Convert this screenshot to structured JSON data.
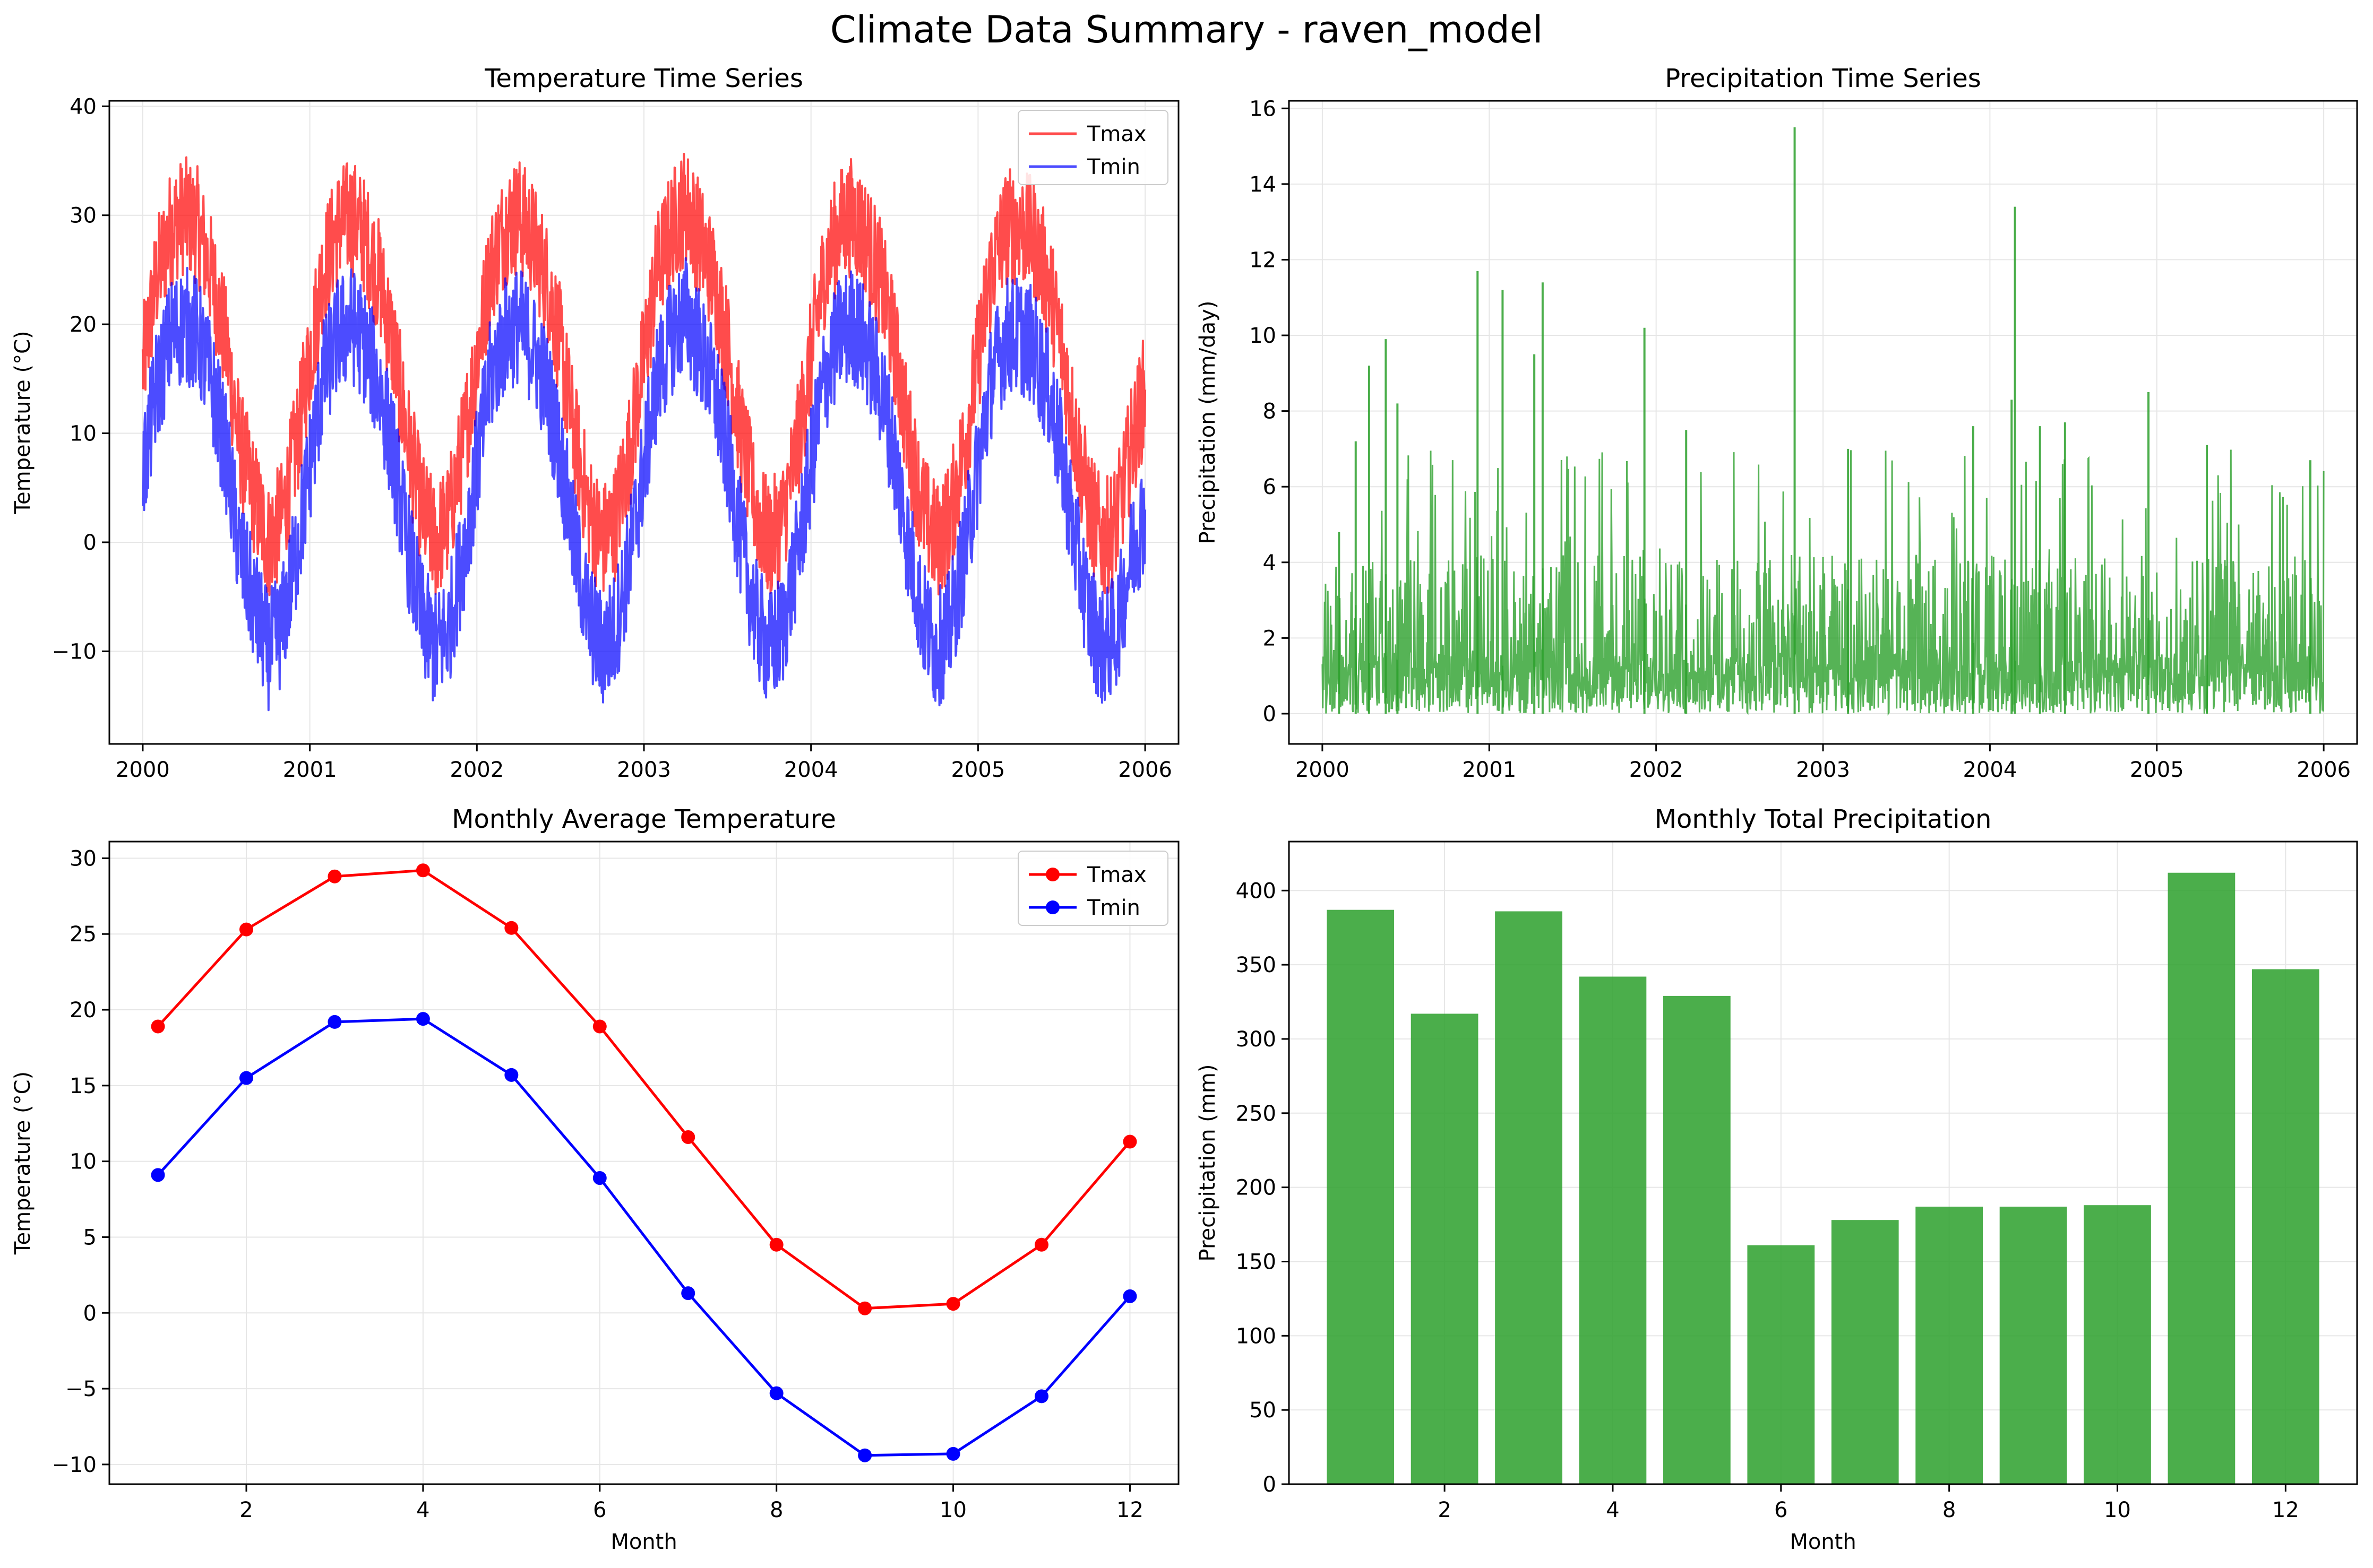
{
  "figure": {
    "suptitle": "Climate Data Summary - raven_model"
  },
  "colors": {
    "tmax_ts": "#ff0000",
    "tmin_ts": "#0000ff",
    "precip": "#2ca02c",
    "grid": "#e6e6e6"
  },
  "chart_data": [
    {
      "id": "temp_ts",
      "type": "line",
      "title": "Temperature Time Series",
      "xlabel": "",
      "ylabel": "Temperature (°C)",
      "xlim": [
        1999.8,
        2006.2
      ],
      "ylim": [
        -18.5,
        40.5
      ],
      "xticks": [
        2000,
        2001,
        2002,
        2003,
        2004,
        2005,
        2006
      ],
      "yticks": [
        -10,
        0,
        10,
        20,
        30,
        40
      ],
      "grid": true,
      "legend_position": "top-right",
      "series_note": "daily values, shown as noisy seasonal cycle",
      "series": [
        {
          "name": "Tmax",
          "color": "#ff0000",
          "alpha": 0.7,
          "x": [
            2000.0,
            2000.08,
            2000.17,
            2000.25,
            2000.33,
            2000.42,
            2000.5,
            2000.58,
            2000.67,
            2000.75,
            2000.83,
            2000.92,
            2001.0,
            2001.08,
            2001.17,
            2001.25,
            2001.33,
            2001.42,
            2001.5,
            2001.58,
            2001.67,
            2001.75,
            2001.83,
            2001.92,
            2002.0,
            2002.08,
            2002.17,
            2002.25,
            2002.33,
            2002.42,
            2002.5,
            2002.58,
            2002.67,
            2002.75,
            2002.83,
            2002.92,
            2003.0,
            2003.08,
            2003.17,
            2003.25,
            2003.33,
            2003.42,
            2003.5,
            2003.58,
            2003.67,
            2003.75,
            2003.83,
            2003.92,
            2004.0,
            2004.08,
            2004.17,
            2004.25,
            2004.33,
            2004.42,
            2004.5,
            2004.58,
            2004.67,
            2004.75,
            2004.83,
            2004.92,
            2005.0,
            2005.08,
            2005.17,
            2005.25,
            2005.33,
            2005.42,
            2005.5,
            2005.58,
            2005.67,
            2005.75,
            2005.83,
            2005.92,
            2006.0
          ],
          "y": [
            16,
            24,
            29,
            30,
            29,
            24,
            18,
            9,
            4,
            0,
            2,
            9,
            17,
            25,
            29,
            30,
            28,
            24,
            18,
            10,
            3,
            0,
            2,
            9,
            17,
            25,
            29,
            30,
            28,
            24,
            18,
            10,
            3,
            0,
            2,
            9,
            17,
            25,
            29,
            31,
            28,
            24,
            18,
            10,
            3,
            0,
            2,
            9,
            17,
            25,
            29,
            30,
            28,
            24,
            18,
            10,
            3,
            0,
            2,
            9,
            17,
            25,
            29,
            29,
            28,
            24,
            18,
            10,
            3,
            0,
            2,
            9,
            14
          ],
          "y_max": 37.3,
          "y_min": -6.5
        },
        {
          "name": "Tmin",
          "color": "#0000ff",
          "alpha": 0.7,
          "x": [
            2000.0,
            2000.08,
            2000.17,
            2000.25,
            2000.33,
            2000.42,
            2000.5,
            2000.58,
            2000.67,
            2000.75,
            2000.83,
            2000.92,
            2001.0,
            2001.08,
            2001.17,
            2001.25,
            2001.33,
            2001.42,
            2001.5,
            2001.58,
            2001.67,
            2001.75,
            2001.83,
            2001.92,
            2002.0,
            2002.08,
            2002.17,
            2002.25,
            2002.33,
            2002.42,
            2002.5,
            2002.58,
            2002.67,
            2002.75,
            2002.83,
            2002.92,
            2003.0,
            2003.08,
            2003.17,
            2003.25,
            2003.33,
            2003.42,
            2003.5,
            2003.58,
            2003.67,
            2003.75,
            2003.83,
            2003.92,
            2004.0,
            2004.08,
            2004.17,
            2004.25,
            2004.33,
            2004.42,
            2004.5,
            2004.58,
            2004.67,
            2004.75,
            2004.83,
            2004.92,
            2005.0,
            2005.08,
            2005.17,
            2005.25,
            2005.33,
            2005.42,
            2005.5,
            2005.58,
            2005.67,
            2005.75,
            2005.83,
            2005.92,
            2006.0
          ],
          "y": [
            6,
            14,
            19,
            20,
            19,
            14,
            8,
            -1,
            -6,
            -10,
            -8,
            -1,
            7,
            15,
            19,
            20,
            18,
            14,
            8,
            0,
            -7,
            -10,
            -8,
            -1,
            7,
            15,
            19,
            20,
            18,
            14,
            8,
            0,
            -7,
            -10,
            -8,
            -1,
            7,
            15,
            19,
            21,
            18,
            14,
            8,
            0,
            -7,
            -10,
            -8,
            -1,
            7,
            15,
            19,
            20,
            18,
            14,
            8,
            0,
            -7,
            -10,
            -8,
            -1,
            7,
            15,
            19,
            19,
            18,
            14,
            8,
            0,
            -7,
            -10,
            -8,
            -1,
            3
          ],
          "y_max": 27,
          "y_min": -16
        }
      ]
    },
    {
      "id": "precip_ts",
      "type": "line",
      "title": "Precipitation Time Series",
      "xlabel": "",
      "ylabel": "Precipitation (mm/day)",
      "xlim": [
        1999.8,
        2006.2
      ],
      "ylim": [
        -0.8,
        16.2
      ],
      "xticks": [
        2000,
        2001,
        2002,
        2003,
        2004,
        2005,
        2006
      ],
      "yticks": [
        0,
        2,
        4,
        6,
        8,
        10,
        12,
        14,
        16
      ],
      "grid": true,
      "series": [
        {
          "color": "#2ca02c",
          "alpha": 0.8,
          "peaks": [
            {
              "x": 2000.1,
              "y": 4.8
            },
            {
              "x": 2000.2,
              "y": 7.2
            },
            {
              "x": 2000.28,
              "y": 9.2
            },
            {
              "x": 2000.38,
              "y": 9.9
            },
            {
              "x": 2000.45,
              "y": 8.2
            },
            {
              "x": 2000.93,
              "y": 11.7
            },
            {
              "x": 2001.08,
              "y": 11.2
            },
            {
              "x": 2001.27,
              "y": 9.5
            },
            {
              "x": 2001.32,
              "y": 11.4
            },
            {
              "x": 2001.93,
              "y": 10.2
            },
            {
              "x": 2002.18,
              "y": 7.5
            },
            {
              "x": 2002.83,
              "y": 15.5
            },
            {
              "x": 2003.15,
              "y": 7.0
            },
            {
              "x": 2003.9,
              "y": 7.6
            },
            {
              "x": 2004.13,
              "y": 8.3
            },
            {
              "x": 2004.15,
              "y": 13.4
            },
            {
              "x": 2004.3,
              "y": 7.6
            },
            {
              "x": 2004.45,
              "y": 7.7
            },
            {
              "x": 2004.95,
              "y": 8.5
            },
            {
              "x": 2005.3,
              "y": 7.1
            },
            {
              "x": 2005.92,
              "y": 6.7
            }
          ],
          "typical_range": [
            0,
            4
          ]
        }
      ]
    },
    {
      "id": "monthly_temp",
      "type": "line",
      "title": "Monthly Average Temperature",
      "xlabel": "Month",
      "ylabel": "Temperature (°C)",
      "xlim": [
        0.45,
        12.55
      ],
      "ylim": [
        -11.3,
        31.1
      ],
      "xticks": [
        2,
        4,
        6,
        8,
        10,
        12
      ],
      "yticks": [
        -10,
        -5,
        0,
        5,
        10,
        15,
        20,
        25,
        30
      ],
      "grid": true,
      "legend_position": "top-right",
      "x": [
        1,
        2,
        3,
        4,
        5,
        6,
        7,
        8,
        9,
        10,
        11,
        12
      ],
      "series": [
        {
          "name": "Tmax",
          "color": "#ff0000",
          "values": [
            18.9,
            25.3,
            28.8,
            29.2,
            25.4,
            18.9,
            11.6,
            4.5,
            0.3,
            0.6,
            4.5,
            11.3
          ]
        },
        {
          "name": "Tmin",
          "color": "#0000ff",
          "values": [
            9.1,
            15.5,
            19.2,
            19.4,
            15.7,
            8.9,
            1.3,
            -5.3,
            -9.4,
            -9.3,
            -5.5,
            1.1
          ]
        }
      ]
    },
    {
      "id": "monthly_precip",
      "type": "bar",
      "title": "Monthly Total Precipitation",
      "xlabel": "Month",
      "ylabel": "Precipitation (mm)",
      "xlim": [
        0.15,
        12.85
      ],
      "ylim": [
        0,
        433
      ],
      "xticks": [
        2,
        4,
        6,
        8,
        10,
        12
      ],
      "yticks": [
        0,
        50,
        100,
        150,
        200,
        250,
        300,
        350,
        400
      ],
      "grid": true,
      "color": "#2ca02c",
      "categories": [
        1,
        2,
        3,
        4,
        5,
        6,
        7,
        8,
        9,
        10,
        11,
        12
      ],
      "values": [
        387,
        317,
        386,
        342,
        329,
        161,
        178,
        187,
        187,
        188,
        412,
        347
      ]
    }
  ]
}
